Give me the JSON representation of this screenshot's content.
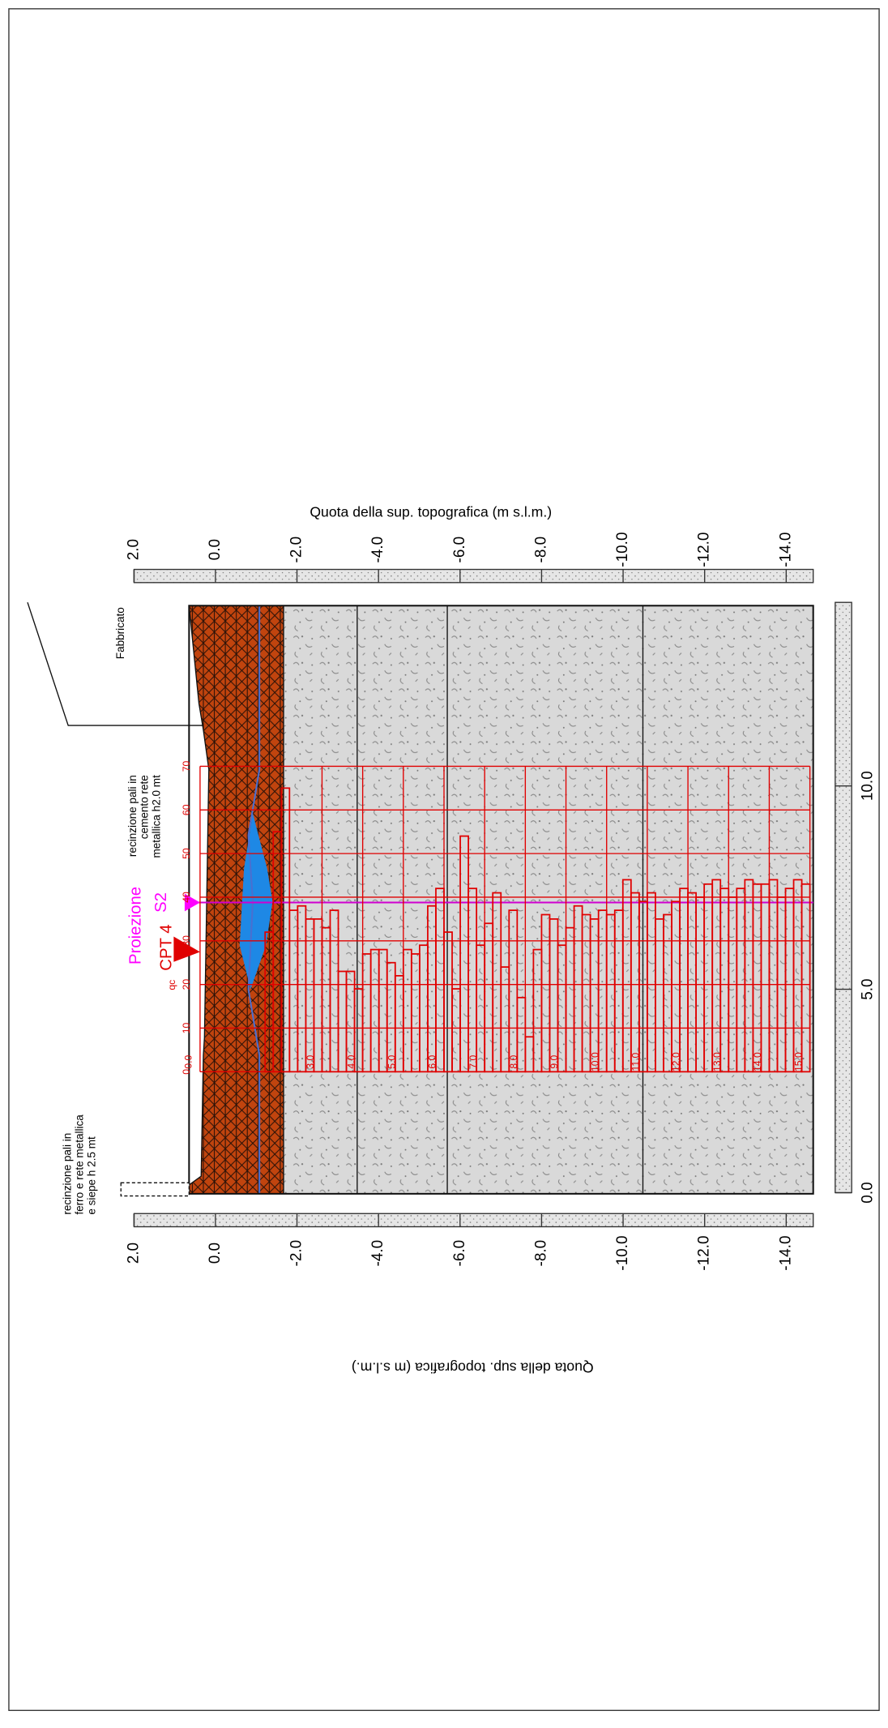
{
  "elevation_axis": {
    "title": "Quota della sup. topografica (m s.l.m.)",
    "ticks": [
      {
        "value": 2,
        "label": "2.0"
      },
      {
        "value": 0,
        "label": "0.0"
      },
      {
        "value": -2,
        "label": "-2.0"
      },
      {
        "value": -4,
        "label": "-4.0"
      },
      {
        "value": -6,
        "label": "-6.0"
      },
      {
        "value": -8,
        "label": "-8.0"
      },
      {
        "value": -10,
        "label": "-10.0"
      },
      {
        "value": -12,
        "label": "-12.0"
      },
      {
        "value": -14,
        "label": "-14.0"
      }
    ]
  },
  "distance_axis": {
    "ticks": [
      {
        "value": 0,
        "label": "0.0"
      },
      {
        "value": 5,
        "label": "5.0"
      },
      {
        "value": 10,
        "label": "10.0"
      }
    ]
  },
  "cpt": {
    "name": "CPT 4",
    "qc_label": "qc",
    "qc_ticks": [
      0,
      10,
      20,
      30,
      40,
      50,
      60,
      70
    ],
    "depth_ticks": [
      {
        "value": 0,
        "label": "0.0"
      },
      {
        "value": 3,
        "label": "3.0"
      },
      {
        "value": 4,
        "label": "4.0"
      },
      {
        "value": 5,
        "label": "5.0"
      },
      {
        "value": 6,
        "label": "6.0"
      },
      {
        "value": 7,
        "label": "7.0"
      },
      {
        "value": 8,
        "label": "8.0"
      },
      {
        "value": 9,
        "label": "9.0"
      },
      {
        "value": 10,
        "label": "10.0"
      },
      {
        "value": 11,
        "label": "11.0"
      },
      {
        "value": 12,
        "label": "12.0"
      },
      {
        "value": 13,
        "label": "13.0"
      },
      {
        "value": 14,
        "label": "14.0"
      },
      {
        "value": 15,
        "label": "15.0"
      }
    ],
    "points": [
      [
        1.6,
        32
      ],
      [
        1.8,
        55
      ],
      [
        2.0,
        65
      ],
      [
        2.2,
        37
      ],
      [
        2.4,
        38
      ],
      [
        2.6,
        35
      ],
      [
        2.8,
        35
      ],
      [
        3.0,
        33
      ],
      [
        3.2,
        37
      ],
      [
        3.4,
        23
      ],
      [
        3.6,
        23
      ],
      [
        3.8,
        19
      ],
      [
        4.0,
        27
      ],
      [
        4.2,
        28
      ],
      [
        4.4,
        28
      ],
      [
        4.6,
        25
      ],
      [
        4.8,
        22
      ],
      [
        5.0,
        28
      ],
      [
        5.2,
        27
      ],
      [
        5.4,
        29
      ],
      [
        5.6,
        38
      ],
      [
        5.8,
        42
      ],
      [
        6.0,
        32
      ],
      [
        6.2,
        19
      ],
      [
        6.4,
        54
      ],
      [
        6.6,
        42
      ],
      [
        6.8,
        29
      ],
      [
        7.0,
        34
      ],
      [
        7.2,
        41
      ],
      [
        7.4,
        24
      ],
      [
        7.6,
        37
      ],
      [
        7.8,
        17
      ],
      [
        8.0,
        8
      ],
      [
        8.2,
        28
      ],
      [
        8.4,
        36
      ],
      [
        8.6,
        35
      ],
      [
        8.8,
        29
      ],
      [
        9.0,
        33
      ],
      [
        9.2,
        38
      ],
      [
        9.4,
        36
      ],
      [
        9.6,
        35
      ],
      [
        9.8,
        37
      ],
      [
        10.0,
        36
      ],
      [
        10.2,
        37
      ],
      [
        10.4,
        44
      ],
      [
        10.6,
        41
      ],
      [
        10.8,
        39
      ],
      [
        11.0,
        41
      ],
      [
        11.2,
        35
      ],
      [
        11.4,
        36
      ],
      [
        11.6,
        39
      ],
      [
        11.8,
        42
      ],
      [
        12.0,
        41
      ],
      [
        12.2,
        40
      ],
      [
        12.4,
        43
      ],
      [
        12.6,
        44
      ],
      [
        12.8,
        42
      ],
      [
        13.0,
        40
      ],
      [
        13.2,
        42
      ],
      [
        13.4,
        44
      ],
      [
        13.6,
        43
      ],
      [
        13.8,
        43
      ],
      [
        14.0,
        44
      ],
      [
        14.2,
        40
      ],
      [
        14.4,
        42
      ],
      [
        14.6,
        44
      ],
      [
        14.8,
        43
      ]
    ]
  },
  "labels": {
    "projection": "Proiezione",
    "borehole": "S2",
    "building": "Fabbricato",
    "fence_1": [
      "recinzione pali in",
      "cemento rete",
      "metallica h2.0 mt"
    ],
    "fence_2": [
      "recinzione pali in",
      "ferro e rete metallica",
      "e siepe  h 2.5 mt"
    ]
  }
}
